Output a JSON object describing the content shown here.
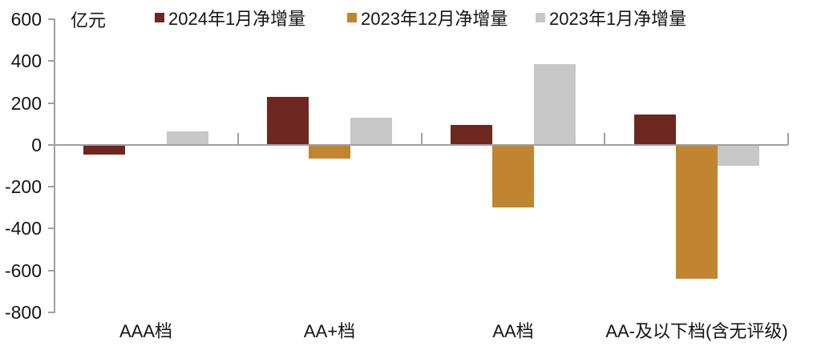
{
  "chart_data": {
    "type": "bar",
    "unit_label": "亿元",
    "categories": [
      "AAA档",
      "AA+档",
      "AA档",
      "AA-及以下档(含无评级)"
    ],
    "series": [
      {
        "name": "2024年1月净增量",
        "color": "#6E2621",
        "values": [
          -45,
          230,
          95,
          145
        ]
      },
      {
        "name": "2023年12月净增量",
        "color": "#C18531",
        "values": [
          0,
          -65,
          -300,
          -640
        ]
      },
      {
        "name": "2023年1月净增量",
        "color": "#C7C7C7",
        "values": [
          65,
          130,
          385,
          -100
        ]
      }
    ],
    "ylim": [
      -800,
      600
    ],
    "yticks": [
      600,
      400,
      200,
      0,
      -200,
      -400,
      -600,
      -800
    ],
    "grid": false,
    "legend_position": "top",
    "axis_color": "#a0a0a0",
    "text_color": "#141414"
  }
}
